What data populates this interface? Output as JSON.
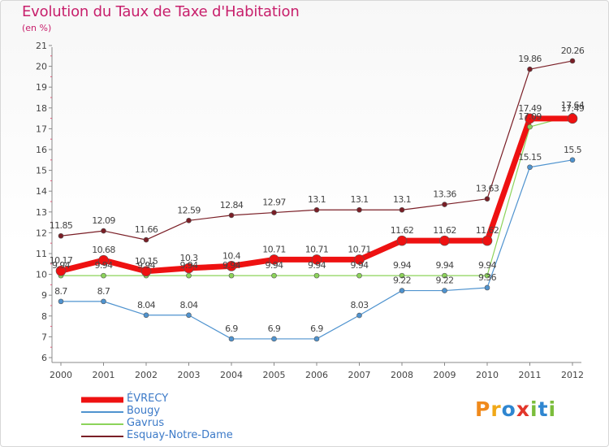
{
  "header": {
    "title": "Evolution du Taux de Taxe d'Habitation",
    "subtitle": "(en %)"
  },
  "logo": {
    "text": "Proxiti",
    "colors": [
      "#f08a1c",
      "#f0a818",
      "#2f86d0",
      "#e2362a",
      "#7bbd3c",
      "#2f86d0",
      "#7bbd3c"
    ]
  },
  "chart_data": {
    "type": "line",
    "x": [
      "2000",
      "2001",
      "2002",
      "2003",
      "2004",
      "2005",
      "2006",
      "2007",
      "2008",
      "2009",
      "2010",
      "2011",
      "2012"
    ],
    "yticks": [
      "6",
      "7",
      "8",
      "9",
      "10",
      "11",
      "12",
      "13",
      "14",
      "15",
      "16",
      "17",
      "18",
      "19",
      "20",
      "21"
    ],
    "ylim": [
      6,
      21
    ],
    "grid": false,
    "legend_position": "bottom-left",
    "series": [
      {
        "name": "Esquay-Notre-Dame",
        "color": "#7a1e26",
        "values": [
          11.85,
          12.09,
          11.66,
          12.59,
          12.84,
          12.97,
          13.1,
          13.1,
          13.1,
          13.36,
          13.63,
          19.86,
          20.26
        ],
        "labels": [
          "11.85",
          "12.09",
          "11.66",
          "12.59",
          "12.84",
          "12.97",
          "13.1",
          "13.1",
          "13.1",
          "13.36",
          "13.63",
          "19.86",
          "20.26"
        ]
      },
      {
        "name": "Gavrus",
        "color": "#8cd35a",
        "values": [
          9.94,
          9.94,
          9.94,
          9.94,
          9.94,
          9.94,
          9.94,
          9.94,
          9.94,
          9.94,
          9.94,
          17.09,
          17.64
        ],
        "labels": [
          "9.94",
          "9.94",
          "9.94",
          "9.94",
          "9.94",
          "9.94",
          "9.94",
          "9.94",
          "9.94",
          "9.94",
          "9.94",
          "17.09",
          "17.64"
        ]
      },
      {
        "name": "Bougy",
        "color": "#4f93cf",
        "values": [
          8.7,
          8.7,
          8.04,
          8.04,
          6.9,
          6.9,
          6.9,
          8.03,
          9.22,
          9.22,
          9.36,
          15.15,
          15.5
        ],
        "labels": [
          "8.7",
          "8.7",
          "8.04",
          "8.04",
          "6.9",
          "6.9",
          "6.9",
          "8.03",
          "9.22",
          "9.22",
          "9.36",
          "15.15",
          "15.5"
        ]
      },
      {
        "name": "ÉVRECY",
        "color": "#ee1111",
        "values": [
          10.17,
          10.68,
          10.15,
          10.3,
          10.4,
          10.71,
          10.71,
          10.71,
          11.62,
          11.62,
          11.62,
          17.49,
          17.49
        ],
        "labels": [
          "10.17",
          "10.68",
          "10.15",
          "10.3",
          "10.4",
          "10.71",
          "10.71",
          "10.71",
          "11.62",
          "11.62",
          "11.62",
          "17.49",
          "17.49"
        ]
      }
    ]
  }
}
